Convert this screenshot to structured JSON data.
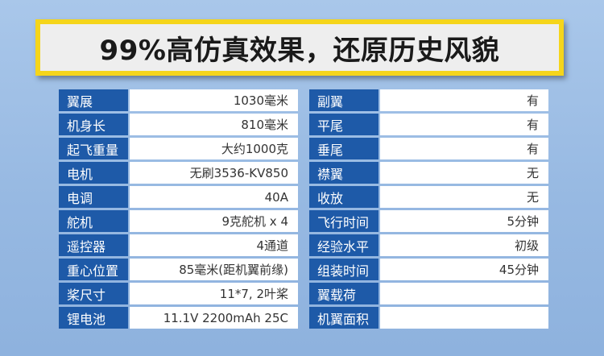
{
  "banner": {
    "title": "99%高仿真效果，还原历史风貌"
  },
  "left_specs": [
    {
      "label": "翼展",
      "value": "1030毫米"
    },
    {
      "label": "机身长",
      "value": "810毫米"
    },
    {
      "label": "起飞重量",
      "value": "大约1000克"
    },
    {
      "label": "电机",
      "value": "无刷3536-KV850"
    },
    {
      "label": "电调",
      "value": "40A"
    },
    {
      "label": "舵机",
      "value": "9克舵机 x 4"
    },
    {
      "label": "遥控器",
      "value": "4通道"
    },
    {
      "label": "重心位置",
      "value": "85毫米(距机翼前缘)"
    },
    {
      "label": "桨尺寸",
      "value": "11*7, 2叶桨"
    },
    {
      "label": "锂电池",
      "value": "11.1V 2200mAh 25C"
    }
  ],
  "right_specs": [
    {
      "label": "副翼",
      "value": "有"
    },
    {
      "label": "平尾",
      "value": "有"
    },
    {
      "label": "垂尾",
      "value": "有"
    },
    {
      "label": "襟翼",
      "value": "无"
    },
    {
      "label": "收放",
      "value": "无"
    },
    {
      "label": "飞行时间",
      "value": "5分钟"
    },
    {
      "label": "经验水平",
      "value": "初级"
    },
    {
      "label": "组装时间",
      "value": "45分钟"
    },
    {
      "label": "翼载荷",
      "value": ""
    },
    {
      "label": "机翼面积",
      "value": ""
    }
  ]
}
